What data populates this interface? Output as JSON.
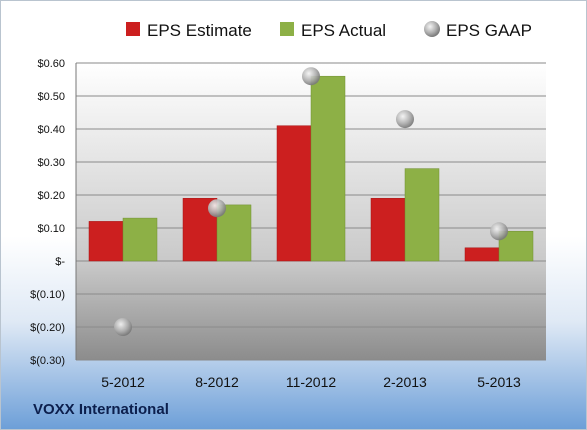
{
  "chart_data": {
    "type": "bar",
    "categories": [
      "5-2012",
      "8-2012",
      "11-2012",
      "2-2013",
      "5-2013"
    ],
    "series": [
      {
        "name": "EPS Estimate",
        "kind": "bar",
        "color": "#cc1f1f",
        "values": [
          0.12,
          0.19,
          0.41,
          0.19,
          0.04
        ]
      },
      {
        "name": "EPS Actual",
        "kind": "bar",
        "color": "#8db046",
        "values": [
          0.13,
          0.17,
          0.56,
          0.28,
          0.09
        ]
      },
      {
        "name": "EPS GAAP",
        "kind": "marker",
        "color": "#a8a8a8",
        "values": [
          -0.2,
          0.16,
          0.56,
          0.43,
          0.09
        ]
      }
    ],
    "ylim": [
      -0.3,
      0.6
    ],
    "yticks": [
      0.6,
      0.5,
      0.4,
      0.3,
      0.2,
      0.1,
      0,
      -0.1,
      -0.2,
      -0.3
    ],
    "ytick_labels": [
      "$0.60",
      "$0.50",
      "$0.40",
      "$0.30",
      "$0.20",
      "$0.10",
      "$-",
      "$(0.10)",
      "$(0.20)",
      "$(0.30)"
    ],
    "grid": true,
    "legend_position": "top"
  },
  "footer": {
    "company": "VOXX International"
  }
}
